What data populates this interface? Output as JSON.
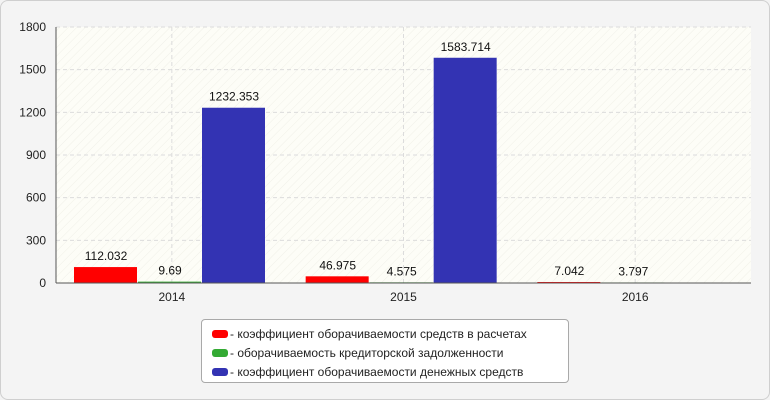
{
  "chart_data": {
    "type": "bar",
    "categories": [
      "2014",
      "2015",
      "2016"
    ],
    "series": [
      {
        "name": "- коэффициент оборачиваемости средств в расчетах",
        "color": "#ff0000",
        "values": [
          112.032,
          46.975,
          7.042
        ],
        "labels": [
          "112.032",
          "46.975",
          "7.042"
        ]
      },
      {
        "name": "- оборачиваемость кредиторской задолженности",
        "color": "#33aa33",
        "values": [
          9.69,
          4.575,
          3.797
        ],
        "labels": [
          "9.69",
          "4.575",
          "3.797"
        ]
      },
      {
        "name": "- коэффициент оборачиваемости денежных средств",
        "color": "#3333b3",
        "values": [
          1232.353,
          1583.714,
          null
        ],
        "labels": [
          "1232.353",
          "1583.714",
          ""
        ]
      }
    ],
    "ylim": [
      0,
      1800
    ],
    "yticks": [
      "0",
      "300",
      "600",
      "900",
      "1200",
      "1500",
      "1800"
    ],
    "grid": true,
    "legend": "bottom"
  }
}
